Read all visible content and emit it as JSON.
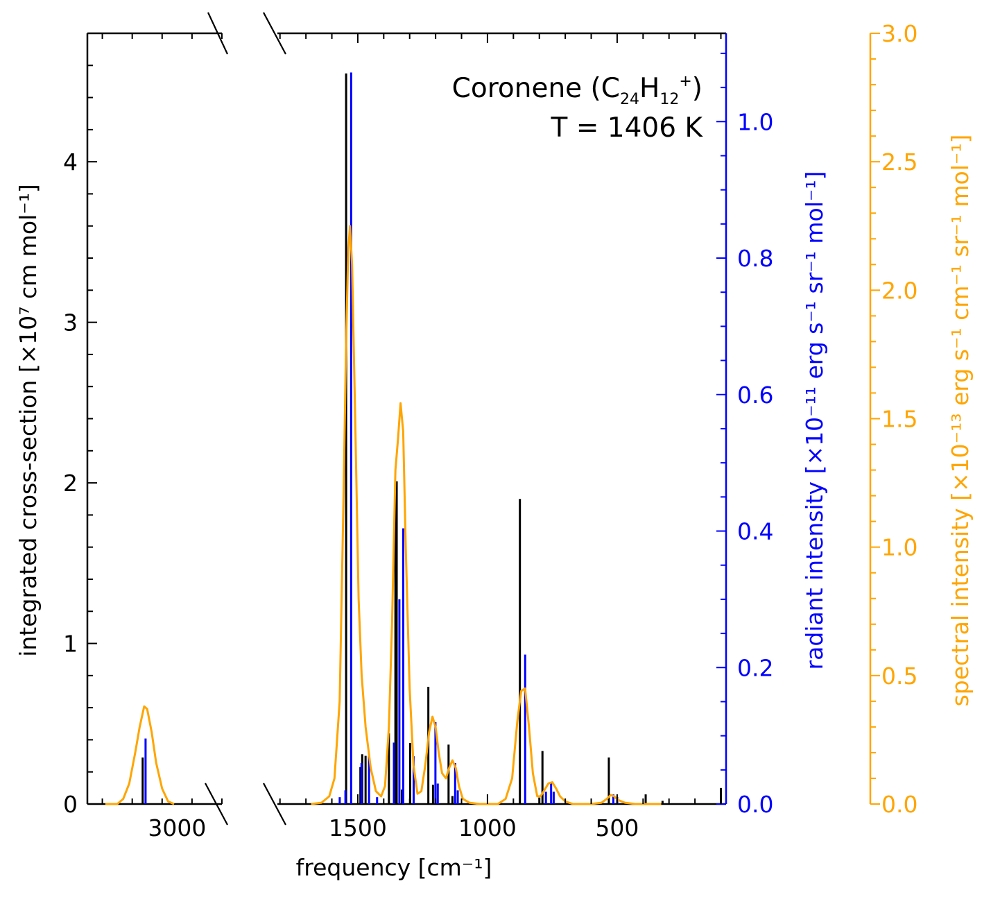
{
  "chart_data": {
    "type": "bar",
    "title_line1": {
      "name": "Coronene (C",
      "sub1": "24",
      "mid": "H",
      "sub2": "12",
      "sup": "+",
      "close": ")"
    },
    "title_line2": "T = 1406 K",
    "xlabel": "frequency [cm⁻¹]",
    "ylabel_left": "integrated cross-section [×10⁷ cm mol⁻¹]",
    "ylabel_right1": "radiant intensity [×10⁻¹¹ erg s⁻¹ sr⁻¹ mol⁻¹]",
    "ylabel_right2": "spectral intensity [×10⁻¹³ erg s⁻¹ cm⁻¹ sr⁻¹ mol⁻¹]",
    "colors": {
      "cross_section": "#000000",
      "radiant": "#0000ff",
      "spectral": "#ffa500"
    },
    "x_axis": {
      "broken": true,
      "segment_left": {
        "range": [
          3300,
          2850
        ],
        "ticks": [
          3000
        ],
        "tick_labels": [
          "3000"
        ]
      },
      "segment_right": {
        "range": [
          1810,
          80
        ],
        "ticks": [
          1500,
          1000,
          500
        ],
        "tick_labels": [
          "1500",
          "1000",
          "500"
        ]
      }
    },
    "y_left": {
      "range": [
        0,
        4.8
      ],
      "ticks": [
        0,
        1,
        2,
        3,
        4
      ],
      "tick_labels": [
        "0",
        "1",
        "2",
        "3",
        "4"
      ]
    },
    "y_right1": {
      "range": [
        0,
        1.1294
      ],
      "ticks": [
        0.0,
        0.2,
        0.4,
        0.6,
        0.8,
        1.0
      ],
      "tick_labels": [
        "0.0",
        "0.2",
        "0.4",
        "0.6",
        "0.8",
        "1.0"
      ]
    },
    "y_right2": {
      "range": [
        0,
        3.0
      ],
      "ticks": [
        0.0,
        0.5,
        1.0,
        1.5,
        2.0,
        2.5,
        3.0
      ],
      "tick_labels": [
        "0.0",
        "0.5",
        "1.0",
        "1.5",
        "2.0",
        "2.5",
        "3.0"
      ]
    },
    "cross_section_bars": [
      {
        "x": 3115,
        "y": 0.29
      },
      {
        "x": 1545,
        "y": 4.55
      },
      {
        "x": 1490,
        "y": 0.23
      },
      {
        "x": 1483,
        "y": 0.31
      },
      {
        "x": 1470,
        "y": 0.3
      },
      {
        "x": 1380,
        "y": 0.44
      },
      {
        "x": 1355,
        "y": 1.95
      },
      {
        "x": 1350,
        "y": 2.01
      },
      {
        "x": 1330,
        "y": 0.09
      },
      {
        "x": 1298,
        "y": 0.38
      },
      {
        "x": 1228,
        "y": 0.73
      },
      {
        "x": 1210,
        "y": 0.12
      },
      {
        "x": 1150,
        "y": 0.37
      },
      {
        "x": 1135,
        "y": 0.05
      },
      {
        "x": 875,
        "y": 1.9
      },
      {
        "x": 800,
        "y": 0.04
      },
      {
        "x": 788,
        "y": 0.33
      },
      {
        "x": 532,
        "y": 0.29
      },
      {
        "x": 390,
        "y": 0.06
      },
      {
        "x": 325,
        "y": 0.02
      },
      {
        "x": 100,
        "y": 0.1
      }
    ],
    "radiant_bars": [
      {
        "x": 3110,
        "y": 0.096
      },
      {
        "x": 1575,
        "y": 0.01
      },
      {
        "x": 1553,
        "y": 0.02
      },
      {
        "x": 1531,
        "y": 1.072
      },
      {
        "x": 1491,
        "y": 0.06
      },
      {
        "x": 1462,
        "y": 0.07
      },
      {
        "x": 1431,
        "y": 0.01
      },
      {
        "x": 1366,
        "y": 0.09
      },
      {
        "x": 1345,
        "y": 0.3
      },
      {
        "x": 1330,
        "y": 0.404
      },
      {
        "x": 1290,
        "y": 0.07
      },
      {
        "x": 1206,
        "y": 0.12
      },
      {
        "x": 1197,
        "y": 0.03
      },
      {
        "x": 1130,
        "y": 0.06
      },
      {
        "x": 1120,
        "y": 0.02
      },
      {
        "x": 860,
        "y": 0.219
      },
      {
        "x": 780,
        "y": 0.018
      },
      {
        "x": 760,
        "y": 0.03
      },
      {
        "x": 750,
        "y": 0.018
      },
      {
        "x": 520,
        "y": 0.014
      },
      {
        "x": 505,
        "y": 0.01
      }
    ],
    "spectral_curve": [
      {
        "x": 3240,
        "y": 0.0
      },
      {
        "x": 3200,
        "y": 0.0
      },
      {
        "x": 3180,
        "y": 0.02
      },
      {
        "x": 3160,
        "y": 0.08
      },
      {
        "x": 3140,
        "y": 0.2
      },
      {
        "x": 3125,
        "y": 0.3
      },
      {
        "x": 3110,
        "y": 0.38
      },
      {
        "x": 3100,
        "y": 0.37
      },
      {
        "x": 3085,
        "y": 0.28
      },
      {
        "x": 3070,
        "y": 0.16
      },
      {
        "x": 3050,
        "y": 0.06
      },
      {
        "x": 3030,
        "y": 0.01
      },
      {
        "x": 3010,
        "y": 0.0
      },
      {
        "x": 1680,
        "y": 0.0
      },
      {
        "x": 1640,
        "y": 0.005
      },
      {
        "x": 1610,
        "y": 0.03
      },
      {
        "x": 1590,
        "y": 0.1
      },
      {
        "x": 1570,
        "y": 0.4
      },
      {
        "x": 1555,
        "y": 1.2
      },
      {
        "x": 1545,
        "y": 1.8
      },
      {
        "x": 1537,
        "y": 2.15
      },
      {
        "x": 1530,
        "y": 2.25
      },
      {
        "x": 1522,
        "y": 2.1
      },
      {
        "x": 1510,
        "y": 1.5
      },
      {
        "x": 1497,
        "y": 0.8
      },
      {
        "x": 1485,
        "y": 0.5
      },
      {
        "x": 1470,
        "y": 0.3
      },
      {
        "x": 1450,
        "y": 0.14
      },
      {
        "x": 1430,
        "y": 0.05
      },
      {
        "x": 1410,
        "y": 0.03
      },
      {
        "x": 1395,
        "y": 0.07
      },
      {
        "x": 1380,
        "y": 0.3
      },
      {
        "x": 1368,
        "y": 0.7
      },
      {
        "x": 1355,
        "y": 1.3
      },
      {
        "x": 1345,
        "y": 1.42
      },
      {
        "x": 1335,
        "y": 1.56
      },
      {
        "x": 1325,
        "y": 1.45
      },
      {
        "x": 1315,
        "y": 1.0
      },
      {
        "x": 1300,
        "y": 0.45
      },
      {
        "x": 1285,
        "y": 0.15
      },
      {
        "x": 1270,
        "y": 0.04
      },
      {
        "x": 1255,
        "y": 0.05
      },
      {
        "x": 1240,
        "y": 0.15
      },
      {
        "x": 1225,
        "y": 0.28
      },
      {
        "x": 1212,
        "y": 0.34
      },
      {
        "x": 1200,
        "y": 0.3
      },
      {
        "x": 1188,
        "y": 0.2
      },
      {
        "x": 1175,
        "y": 0.12
      },
      {
        "x": 1160,
        "y": 0.1
      },
      {
        "x": 1148,
        "y": 0.14
      },
      {
        "x": 1135,
        "y": 0.17
      },
      {
        "x": 1122,
        "y": 0.14
      },
      {
        "x": 1110,
        "y": 0.07
      },
      {
        "x": 1095,
        "y": 0.02
      },
      {
        "x": 1070,
        "y": 0.005
      },
      {
        "x": 1030,
        "y": 0.0
      },
      {
        "x": 960,
        "y": 0.0
      },
      {
        "x": 930,
        "y": 0.02
      },
      {
        "x": 905,
        "y": 0.1
      },
      {
        "x": 885,
        "y": 0.32
      },
      {
        "x": 870,
        "y": 0.44
      },
      {
        "x": 855,
        "y": 0.45
      },
      {
        "x": 840,
        "y": 0.3
      },
      {
        "x": 825,
        "y": 0.12
      },
      {
        "x": 808,
        "y": 0.03
      },
      {
        "x": 795,
        "y": 0.03
      },
      {
        "x": 780,
        "y": 0.055
      },
      {
        "x": 765,
        "y": 0.08
      },
      {
        "x": 750,
        "y": 0.085
      },
      {
        "x": 735,
        "y": 0.06
      },
      {
        "x": 720,
        "y": 0.03
      },
      {
        "x": 700,
        "y": 0.01
      },
      {
        "x": 670,
        "y": 0.0
      },
      {
        "x": 600,
        "y": 0.0
      },
      {
        "x": 560,
        "y": 0.005
      },
      {
        "x": 540,
        "y": 0.02
      },
      {
        "x": 525,
        "y": 0.035
      },
      {
        "x": 512,
        "y": 0.03
      },
      {
        "x": 495,
        "y": 0.015
      },
      {
        "x": 470,
        "y": 0.005
      },
      {
        "x": 430,
        "y": 0.0
      },
      {
        "x": 330,
        "y": 0.0
      }
    ],
    "grid": false,
    "legend": "none"
  }
}
